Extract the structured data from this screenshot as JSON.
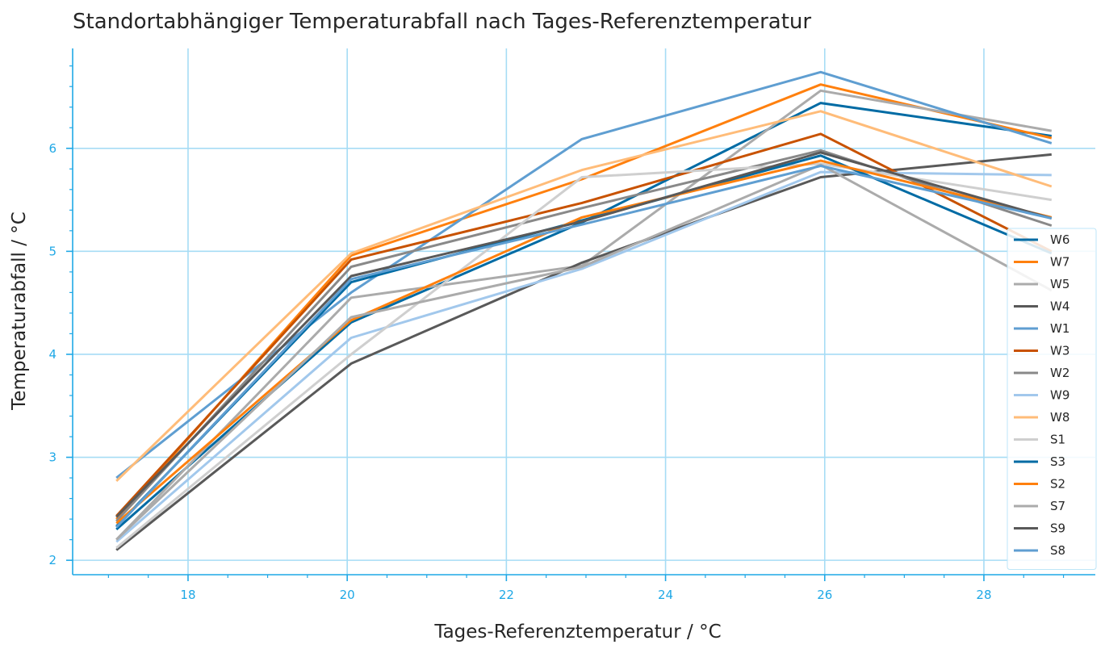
{
  "chart_data": {
    "type": "line",
    "title": "Standortabhängiger Temperaturabfall nach Tages-Referenztemperatur",
    "xlabel": "Tages-Referenztemperatur / °C",
    "ylabel": "Temperaturabfall / °C",
    "xlim": [
      16.55,
      29.4
    ],
    "ylim": [
      1.86,
      6.97
    ],
    "xticks": [
      18,
      20,
      22,
      24,
      26,
      28
    ],
    "yticks": [
      2,
      3,
      4,
      5,
      6
    ],
    "grid": true,
    "legend_position": "center-right",
    "x": [
      17.1,
      20.05,
      22.95,
      25.95,
      28.85
    ],
    "series": [
      {
        "name": "W6",
        "color": "#006ba4",
        "values": [
          2.3,
          4.31,
          5.28,
          6.44,
          6.12
        ]
      },
      {
        "name": "W7",
        "color": "#ff800e",
        "values": [
          2.4,
          4.96,
          5.7,
          6.62,
          6.1
        ]
      },
      {
        "name": "W5",
        "color": "#ababab",
        "values": [
          2.2,
          4.55,
          4.86,
          6.56,
          6.17
        ]
      },
      {
        "name": "W4",
        "color": "#595959",
        "values": [
          2.1,
          3.91,
          4.89,
          5.72,
          5.94
        ]
      },
      {
        "name": "W1",
        "color": "#5f9ed1",
        "values": [
          2.8,
          4.6,
          6.09,
          6.74,
          6.05
        ]
      },
      {
        "name": "W3",
        "color": "#c85200",
        "values": [
          2.43,
          4.92,
          5.47,
          6.14,
          5.0
        ]
      },
      {
        "name": "W2",
        "color": "#898989",
        "values": [
          2.38,
          4.85,
          5.42,
          5.98,
          5.25
        ]
      },
      {
        "name": "W9",
        "color": "#a2c8ec",
        "values": [
          2.18,
          4.16,
          4.83,
          5.77,
          5.74
        ]
      },
      {
        "name": "W8",
        "color": "#ffbc79",
        "values": [
          2.77,
          4.98,
          5.79,
          6.36,
          5.63
        ]
      },
      {
        "name": "S1",
        "color": "#cfcfcf",
        "values": [
          2.12,
          4.0,
          5.72,
          5.85,
          5.5
        ]
      },
      {
        "name": "S3",
        "color": "#006ba4",
        "values": [
          2.33,
          4.7,
          5.3,
          5.93,
          4.98
        ]
      },
      {
        "name": "S2",
        "color": "#ff800e",
        "values": [
          2.36,
          4.33,
          5.33,
          5.88,
          5.33
        ]
      },
      {
        "name": "S7",
        "color": "#ababab",
        "values": [
          2.2,
          4.36,
          4.85,
          5.84,
          4.62
        ]
      },
      {
        "name": "S9",
        "color": "#595959",
        "values": [
          2.42,
          4.76,
          5.29,
          5.96,
          5.32
        ]
      },
      {
        "name": "S8",
        "color": "#5f9ed1",
        "values": [
          2.32,
          4.73,
          5.26,
          5.83,
          5.32
        ]
      }
    ]
  }
}
